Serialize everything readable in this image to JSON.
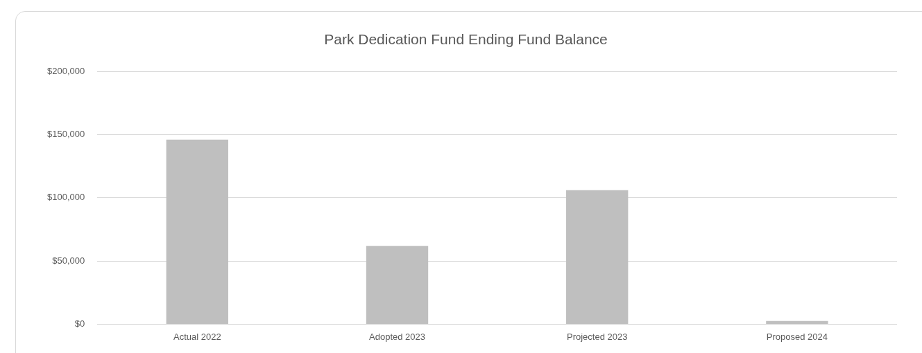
{
  "chart_data": {
    "type": "bar",
    "title": "Park Dedication Fund Ending Fund Balance",
    "categories": [
      "Actual 2022",
      "Adopted 2023",
      "Projected 2023",
      "Proposed 2024"
    ],
    "values": [
      146000,
      62000,
      106000,
      2500
    ],
    "color": "#bfbfbf",
    "ylim": [
      0,
      200000
    ],
    "yticks": [
      {
        "value": 0,
        "label": "$0"
      },
      {
        "value": 50000,
        "label": "$50,000"
      },
      {
        "value": 100000,
        "label": "$100,000"
      },
      {
        "value": 150000,
        "label": "$150,000"
      },
      {
        "value": 200000,
        "label": "$200,000"
      }
    ],
    "grid": "y",
    "legend": false
  }
}
